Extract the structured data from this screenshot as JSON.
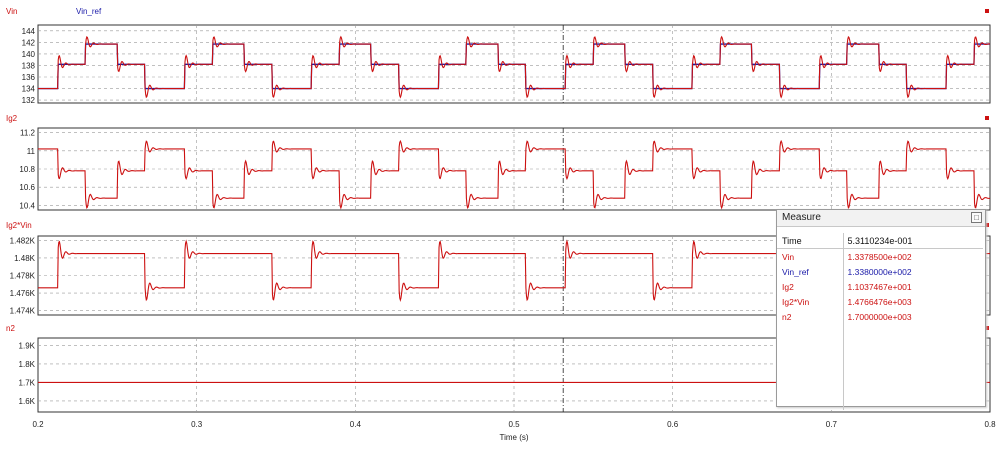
{
  "colors": {
    "red": "#cc1111",
    "blue": "#1a1aa8",
    "grid": "#9a9a9a",
    "axis": "#333333"
  },
  "x_axis": {
    "label": "Time (s)",
    "ticks": [
      "0.2",
      "0.3",
      "0.4",
      "0.5",
      "0.6",
      "0.7",
      "0.8"
    ],
    "range": [
      0.2,
      0.8
    ]
  },
  "cursor_time": 0.531,
  "measure": {
    "title": "Measure",
    "header": {
      "name": "Time",
      "value": "5.3110234e-001"
    },
    "rows": [
      {
        "name": "Vin",
        "value": "1.3378500e+002",
        "color": "#cc1111"
      },
      {
        "name": "Vin_ref",
        "value": "1.3380000e+002",
        "color": "#1a1aa8"
      },
      {
        "name": "Ig2",
        "value": "1.1037467e+001",
        "color": "#cc1111"
      },
      {
        "name": "Ig2*Vin",
        "value": "1.4766476e+003",
        "color": "#cc1111"
      },
      {
        "name": "n2",
        "value": "1.7000000e+003",
        "color": "#cc1111"
      }
    ]
  },
  "chart_data": [
    {
      "type": "line",
      "title": "",
      "legend": [
        "Vin",
        "Vin_ref"
      ],
      "ylim": [
        131.5,
        145
      ],
      "yticks": [
        "132",
        "134",
        "136",
        "138",
        "140",
        "142",
        "144"
      ],
      "period": 0.08,
      "series": [
        {
          "name": "Vin_ref",
          "color": "#1a1aa8",
          "breakpoints": [
            0,
            0.0125,
            0.03,
            0.05,
            0.0675
          ],
          "levels": [
            134,
            138.2,
            141.7,
            138.2,
            134
          ]
        },
        {
          "name": "Vin",
          "color": "#cc1111",
          "breakpoints": [
            0,
            0.0125,
            0.03,
            0.05,
            0.0675
          ],
          "levels": [
            134,
            138.2,
            141.7,
            138.2,
            134
          ]
        }
      ]
    },
    {
      "type": "line",
      "title": "",
      "legend": [
        "Ig2"
      ],
      "ylim": [
        10.35,
        11.25
      ],
      "yticks": [
        "10.4",
        "10.6",
        "10.8",
        "11",
        "11.2"
      ],
      "period": 0.08,
      "series": [
        {
          "name": "Ig2",
          "color": "#cc1111",
          "breakpoints": [
            0,
            0.0125,
            0.03,
            0.05,
            0.0675
          ],
          "levels": [
            11.02,
            10.78,
            10.48,
            10.78,
            11.02
          ]
        }
      ]
    },
    {
      "type": "line",
      "title": "",
      "legend": [
        "Ig2*Vin"
      ],
      "ylim": [
        1473.5,
        1482.5
      ],
      "yticks": [
        "1.474K",
        "1.476K",
        "1.478K",
        "1.48K",
        "1.482K"
      ],
      "period": 0.08,
      "series": [
        {
          "name": "Ig2*Vin",
          "color": "#cc1111",
          "breakpoints": [
            0,
            0.0125,
            0.03,
            0.05,
            0.0675
          ],
          "levels": [
            1476.6,
            1480.5,
            1480.5,
            1480.5,
            1476.6
          ]
        }
      ]
    },
    {
      "type": "line",
      "title": "",
      "legend": [
        "n2"
      ],
      "ylim": [
        1540,
        1940
      ],
      "yticks": [
        "1.6K",
        "1.7K",
        "1.8K",
        "1.9K"
      ],
      "series": [
        {
          "name": "n2",
          "color": "#cc1111",
          "constant": 1700
        }
      ]
    }
  ]
}
